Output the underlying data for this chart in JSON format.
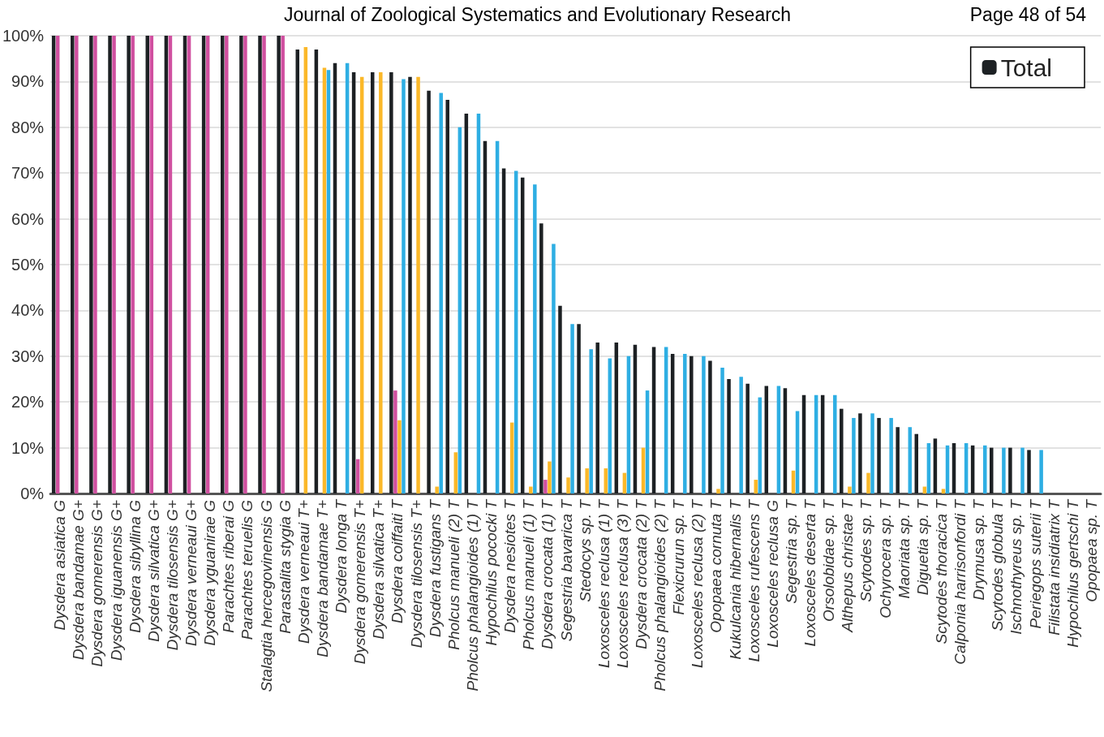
{
  "chart_data": {
    "type": "bar",
    "annotations": [
      "Journal of Zoological Systematics and Evolutionary Research",
      "Page 48 of 54"
    ],
    "categories": [
      "Dysdera asiatica G",
      "Dysdera bandamae G+",
      "Dysdera gomerensis G+",
      "Dysdera iguanensis G+",
      "Dysdera sibyllina G",
      "Dysdera silvatica G+",
      "Dysdera tilosensis G+",
      "Dysdera verneaui G+",
      "Dysdera yguanirae G",
      "Parachtes riberai G",
      "Parachtes teruelis G",
      "Stalagtia hercegovinensis G",
      "Parastalita stygia G",
      "Dysdera verneaui T+",
      "Dysdera bandamae T+",
      "Dysdera longa T",
      "Dysdera gomerensis T+",
      "Dysdera silvatica T+",
      "Dysdera coiffaiti T",
      "Dysdera tilosensis T+",
      "Dysdera fustigans T",
      "Pholcus manueli (2) T",
      "Pholcus phalangioides (1) T",
      "Hypochilus pococki T",
      "Dysdera nesiotes T",
      "Pholcus manueli (1) T",
      "Dysdera crocata (1) T",
      "Segestria bavarica T",
      "Stedocys sp. T",
      "Loxosceles reclusa (1) T",
      "Loxosceles reclusa (3) T",
      "Dysdera crocata (2) T",
      "Pholcus phalangioides (2) T",
      "Flexicrurun sp. T",
      "Loxosceles reclusa (2) T",
      "Opopaea cornuta T",
      "Kukulcania hibernalis T",
      "Loxosceles rufescens T",
      "Loxosceles reclusa G",
      "Segestria sp. T",
      "Loxosceles deserta T",
      "Orsolobidae sp. T",
      "Althepus christae T",
      "Scytodes sp. T",
      "Ochyrocera sp. T",
      "Maoriata sp. T",
      "Diguetia sp. T",
      "Scytodes thoracica T",
      "Calponia harrisonfordi T",
      "Drymusa sp. T",
      "Scytodes globula T",
      "Ischnothyreus sp. T",
      "Periegops suterii T",
      "Filistata insidiatrix T",
      "Hypochilus gertschi T",
      "Opopaea sp. T"
    ],
    "series": [
      {
        "name": "Total",
        "color": "#1d2124",
        "values": [
          100,
          100,
          100,
          100,
          100,
          100,
          100,
          100,
          100,
          100,
          100,
          100,
          100,
          97,
          97,
          94,
          92,
          92,
          92,
          91,
          88,
          86,
          83,
          77,
          71,
          69,
          59,
          41,
          37,
          33,
          33,
          32.5,
          32,
          30.5,
          30,
          29,
          25,
          24,
          23.5,
          23,
          21.5,
          21.5,
          18.5,
          17.5,
          16.5,
          14.5,
          13,
          12,
          11,
          10.5,
          10,
          10,
          9.5,
          0,
          0,
          0
        ]
      },
      {
        "color": "#d050a0",
        "values": [
          100,
          100,
          100,
          100,
          100,
          100,
          100,
          100,
          100,
          100,
          100,
          100,
          100,
          0,
          0,
          0,
          7.5,
          0,
          22.5,
          0,
          0,
          0,
          0,
          0,
          0,
          0,
          3,
          0,
          0,
          0,
          0,
          0,
          0,
          0,
          0,
          0,
          0,
          0,
          0,
          0,
          0,
          0,
          0,
          0,
          0,
          0,
          0,
          0,
          0,
          0,
          0,
          0,
          0,
          0,
          0,
          0
        ]
      },
      {
        "color": "#fbb829",
        "values": [
          0,
          0,
          0,
          0,
          0,
          0,
          0,
          0,
          0,
          0,
          0,
          0,
          0,
          97.5,
          93,
          0,
          91,
          92,
          16,
          91,
          1.5,
          9,
          0,
          0,
          15.5,
          1.5,
          7,
          3.5,
          5.5,
          5.5,
          4.5,
          10,
          0,
          0,
          0,
          1,
          0,
          3,
          0,
          5,
          0,
          0,
          1.5,
          4.5,
          0,
          0,
          1.5,
          1,
          0,
          0,
          0,
          0,
          0,
          0,
          0,
          0
        ]
      },
      {
        "color": "#2eaee3",
        "values": [
          0,
          0,
          0,
          0,
          0,
          0,
          0,
          0,
          0,
          0,
          0,
          0,
          0,
          0,
          92.5,
          94,
          0,
          0,
          90.5,
          0,
          87.5,
          80,
          83,
          77,
          70.5,
          67.5,
          54.5,
          37,
          31.5,
          29.5,
          30,
          22.5,
          32,
          30.5,
          30,
          27.5,
          25.5,
          21,
          23.5,
          18,
          21.5,
          21.5,
          16.5,
          17.5,
          16.5,
          14.5,
          11,
          10.5,
          11,
          10.5,
          10,
          10,
          9.5,
          0,
          0,
          0
        ]
      }
    ],
    "ylim": [
      0,
      100
    ],
    "yticks": [
      {
        "value": 0,
        "label": "0%"
      },
      {
        "value": 10,
        "label": "10%"
      },
      {
        "value": 20,
        "label": "20%"
      },
      {
        "value": 30,
        "label": "30%"
      },
      {
        "value": 40,
        "label": "40%"
      },
      {
        "value": 50,
        "label": "50%"
      },
      {
        "value": 60,
        "label": "60%"
      },
      {
        "value": 70,
        "label": "70%"
      },
      {
        "value": 80,
        "label": "80%"
      },
      {
        "value": 90,
        "label": "90%"
      },
      {
        "value": 100,
        "label": "100%"
      }
    ],
    "grid": "y",
    "legend": "top right"
  }
}
